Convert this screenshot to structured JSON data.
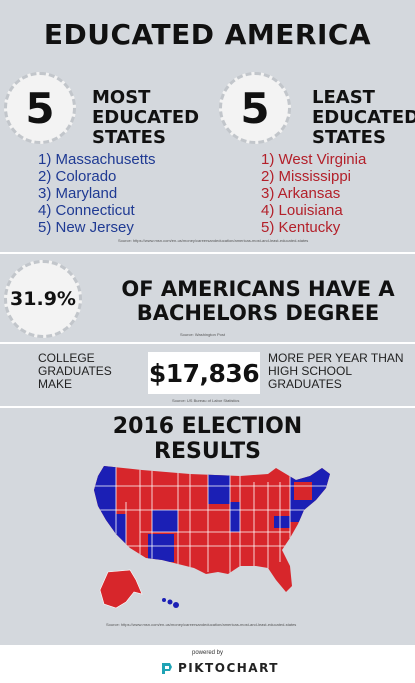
{
  "title": "EDUCATED AMERICA",
  "most": {
    "number": "5",
    "heading_lines": [
      "MOST",
      "EDUCATED",
      "STATES"
    ],
    "items": [
      "1) Massachusetts",
      "2) Colorado",
      "3) Maryland",
      "4) Connecticut",
      "5) New Jersey"
    ]
  },
  "least": {
    "number": "5",
    "heading_lines": [
      "LEAST",
      "EDUCATED",
      "STATES"
    ],
    "items": [
      "1) West Virginia",
      "2) Mississippi",
      "3) Arkansas",
      "4) Louisiana",
      "5) Kentucky"
    ]
  },
  "source1": "Source: https://www.msn.com/en-us/money/careersandeducation/americas-most-and-least-educated-states",
  "bachelors": {
    "percent": "31.9%",
    "line1": "OF AMERICANS HAVE A",
    "line2": "BACHELORS DEGREE",
    "source": "Source: Washington Post"
  },
  "earnings": {
    "left_lines": [
      "COLLEGE",
      "GRADUATES",
      "MAKE"
    ],
    "amount": "$17,836",
    "right_lines": [
      "MORE PER YEAR THAN",
      "HIGH SCHOOL",
      "GRADUATES"
    ],
    "source": "Source: US Bureau of Labor Statistics"
  },
  "election": {
    "title_lines": [
      "2016 ELECTION",
      "RESULTS"
    ],
    "colors": {
      "red": "#d7262b",
      "blue": "#1b1fb5",
      "border": "#ffffff"
    }
  },
  "source2": "Source: https://www.msn.com/en-us/money/careersandeducation/americas-most-and-least-educated-states",
  "footer": {
    "powered": "powered by",
    "brand": "PIKTOCHART"
  }
}
